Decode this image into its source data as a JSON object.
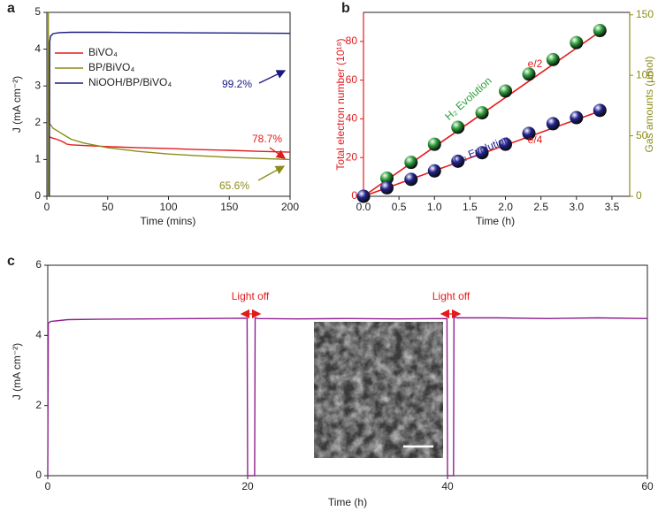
{
  "chart_data": [
    {
      "type": "line",
      "panel_label": "a",
      "xlabel": "Time (mins)",
      "ylabel": "J (mA cm⁻²)",
      "xlim": [
        0,
        200
      ],
      "xticks": [
        0,
        50,
        100,
        150,
        200
      ],
      "ylim": [
        0,
        5
      ],
      "yticks": [
        0,
        1,
        2,
        3,
        4,
        5
      ],
      "legend": "upper left",
      "series": [
        {
          "name": "BiVO₄",
          "color": "#e31a1c",
          "x": [
            2,
            3,
            5,
            8,
            12,
            15,
            16,
            20,
            30,
            50,
            75,
            100,
            125,
            150,
            175,
            200
          ],
          "values": [
            1.62,
            1.6,
            1.58,
            1.55,
            1.5,
            1.45,
            1.42,
            1.4,
            1.38,
            1.35,
            1.32,
            1.3,
            1.27,
            1.25,
            1.22,
            1.2
          ]
        },
        {
          "name": "BP/BiVO₄",
          "color": "#8c8c1a",
          "x": [
            1,
            1.2,
            1.4,
            3,
            5,
            10,
            15,
            20,
            30,
            50,
            75,
            100,
            125,
            150,
            175,
            200
          ],
          "values": [
            0,
            5,
            2.0,
            1.95,
            1.85,
            1.75,
            1.65,
            1.55,
            1.45,
            1.32,
            1.22,
            1.15,
            1.1,
            1.06,
            1.03,
            1.0
          ]
        },
        {
          "name": "NiOOH/BP/BiVO₄",
          "color": "#1a1a80",
          "x": [
            2,
            2.3,
            3,
            5,
            10,
            20,
            50,
            100,
            150,
            200
          ],
          "values": [
            0,
            4.2,
            4.35,
            4.42,
            4.45,
            4.46,
            4.46,
            4.45,
            4.44,
            4.43
          ]
        }
      ],
      "annotations": [
        "99.2%",
        "78.7%",
        "65.6%"
      ]
    },
    {
      "type": "scatter",
      "panel_label": "b",
      "xlabel": "Time (h)",
      "ylabel": "Total electron number (10¹⁸)",
      "y2label": "Gas amounts (μmol)",
      "ylabel_color": "#e31a1c",
      "y2label_color": "#8c8c1a",
      "xlim": [
        0,
        3.75
      ],
      "xticks": [
        {
          "value": 0,
          "label": "0.0"
        },
        0.5,
        {
          "value": 1,
          "label": "1.0"
        },
        1.5,
        {
          "value": 2,
          "label": "2.0"
        },
        2.5,
        {
          "value": 3,
          "label": "3.0"
        },
        3.5
      ],
      "ylim": [
        0,
        95
      ],
      "yticks": [
        0,
        20,
        40,
        60,
        80
      ],
      "y2lim": [
        0,
        152
      ],
      "y2ticks": [
        0,
        50,
        100,
        150
      ],
      "series": [
        {
          "name": "e/2",
          "kind": "line",
          "color": "#e31a1c",
          "x": [
            0,
            3.33
          ],
          "values": [
            0,
            85
          ]
        },
        {
          "name": "e/4",
          "kind": "line",
          "color": "#e31a1c",
          "x": [
            0,
            3.33
          ],
          "values": [
            0,
            44
          ]
        },
        {
          "name": "H₂ Evolution",
          "kind": "scatter",
          "axis": "y2",
          "color": "#2e9e3a",
          "x": [
            0,
            0.33,
            0.67,
            1,
            1.33,
            1.67,
            2,
            2.33,
            2.67,
            3,
            3.33
          ],
          "values": [
            0,
            15,
            28,
            43,
            57,
            69,
            87,
            101,
            113,
            127,
            137
          ]
        },
        {
          "name": "O₂ Evolution",
          "kind": "scatter",
          "axis": "y2",
          "color": "#22228c",
          "x": [
            0,
            0.33,
            0.67,
            1,
            1.33,
            1.67,
            2,
            2.33,
            2.67,
            3,
            3.33
          ],
          "values": [
            0,
            7,
            14,
            21,
            29,
            36,
            43,
            52,
            60,
            65,
            71
          ]
        }
      ]
    },
    {
      "type": "line",
      "panel_label": "c",
      "xlabel": "Time (h)",
      "ylabel": "J (mA cm⁻²)",
      "xlim": [
        0,
        60
      ],
      "xticks": [
        0,
        20,
        40,
        60
      ],
      "ylim": [
        0,
        6
      ],
      "yticks": [
        0,
        2,
        4,
        6
      ],
      "series": [
        {
          "name": "NiOOH/BP/BiVO₄",
          "color": "#90208f",
          "x": [
            0,
            0.05,
            0.3,
            2,
            5,
            10,
            15,
            19.95,
            20,
            20.7,
            20.75,
            21,
            25,
            30,
            35,
            39.95,
            40,
            40.6,
            40.65,
            41,
            45,
            50,
            55,
            60
          ],
          "values": [
            0,
            4.35,
            4.4,
            4.45,
            4.46,
            4.47,
            4.48,
            4.49,
            0,
            0,
            4.5,
            4.48,
            4.47,
            4.48,
            4.47,
            4.48,
            0,
            0,
            4.52,
            4.5,
            4.5,
            4.48,
            4.5,
            4.48
          ]
        }
      ],
      "annotations": [
        "Light off",
        "Light off"
      ]
    }
  ]
}
